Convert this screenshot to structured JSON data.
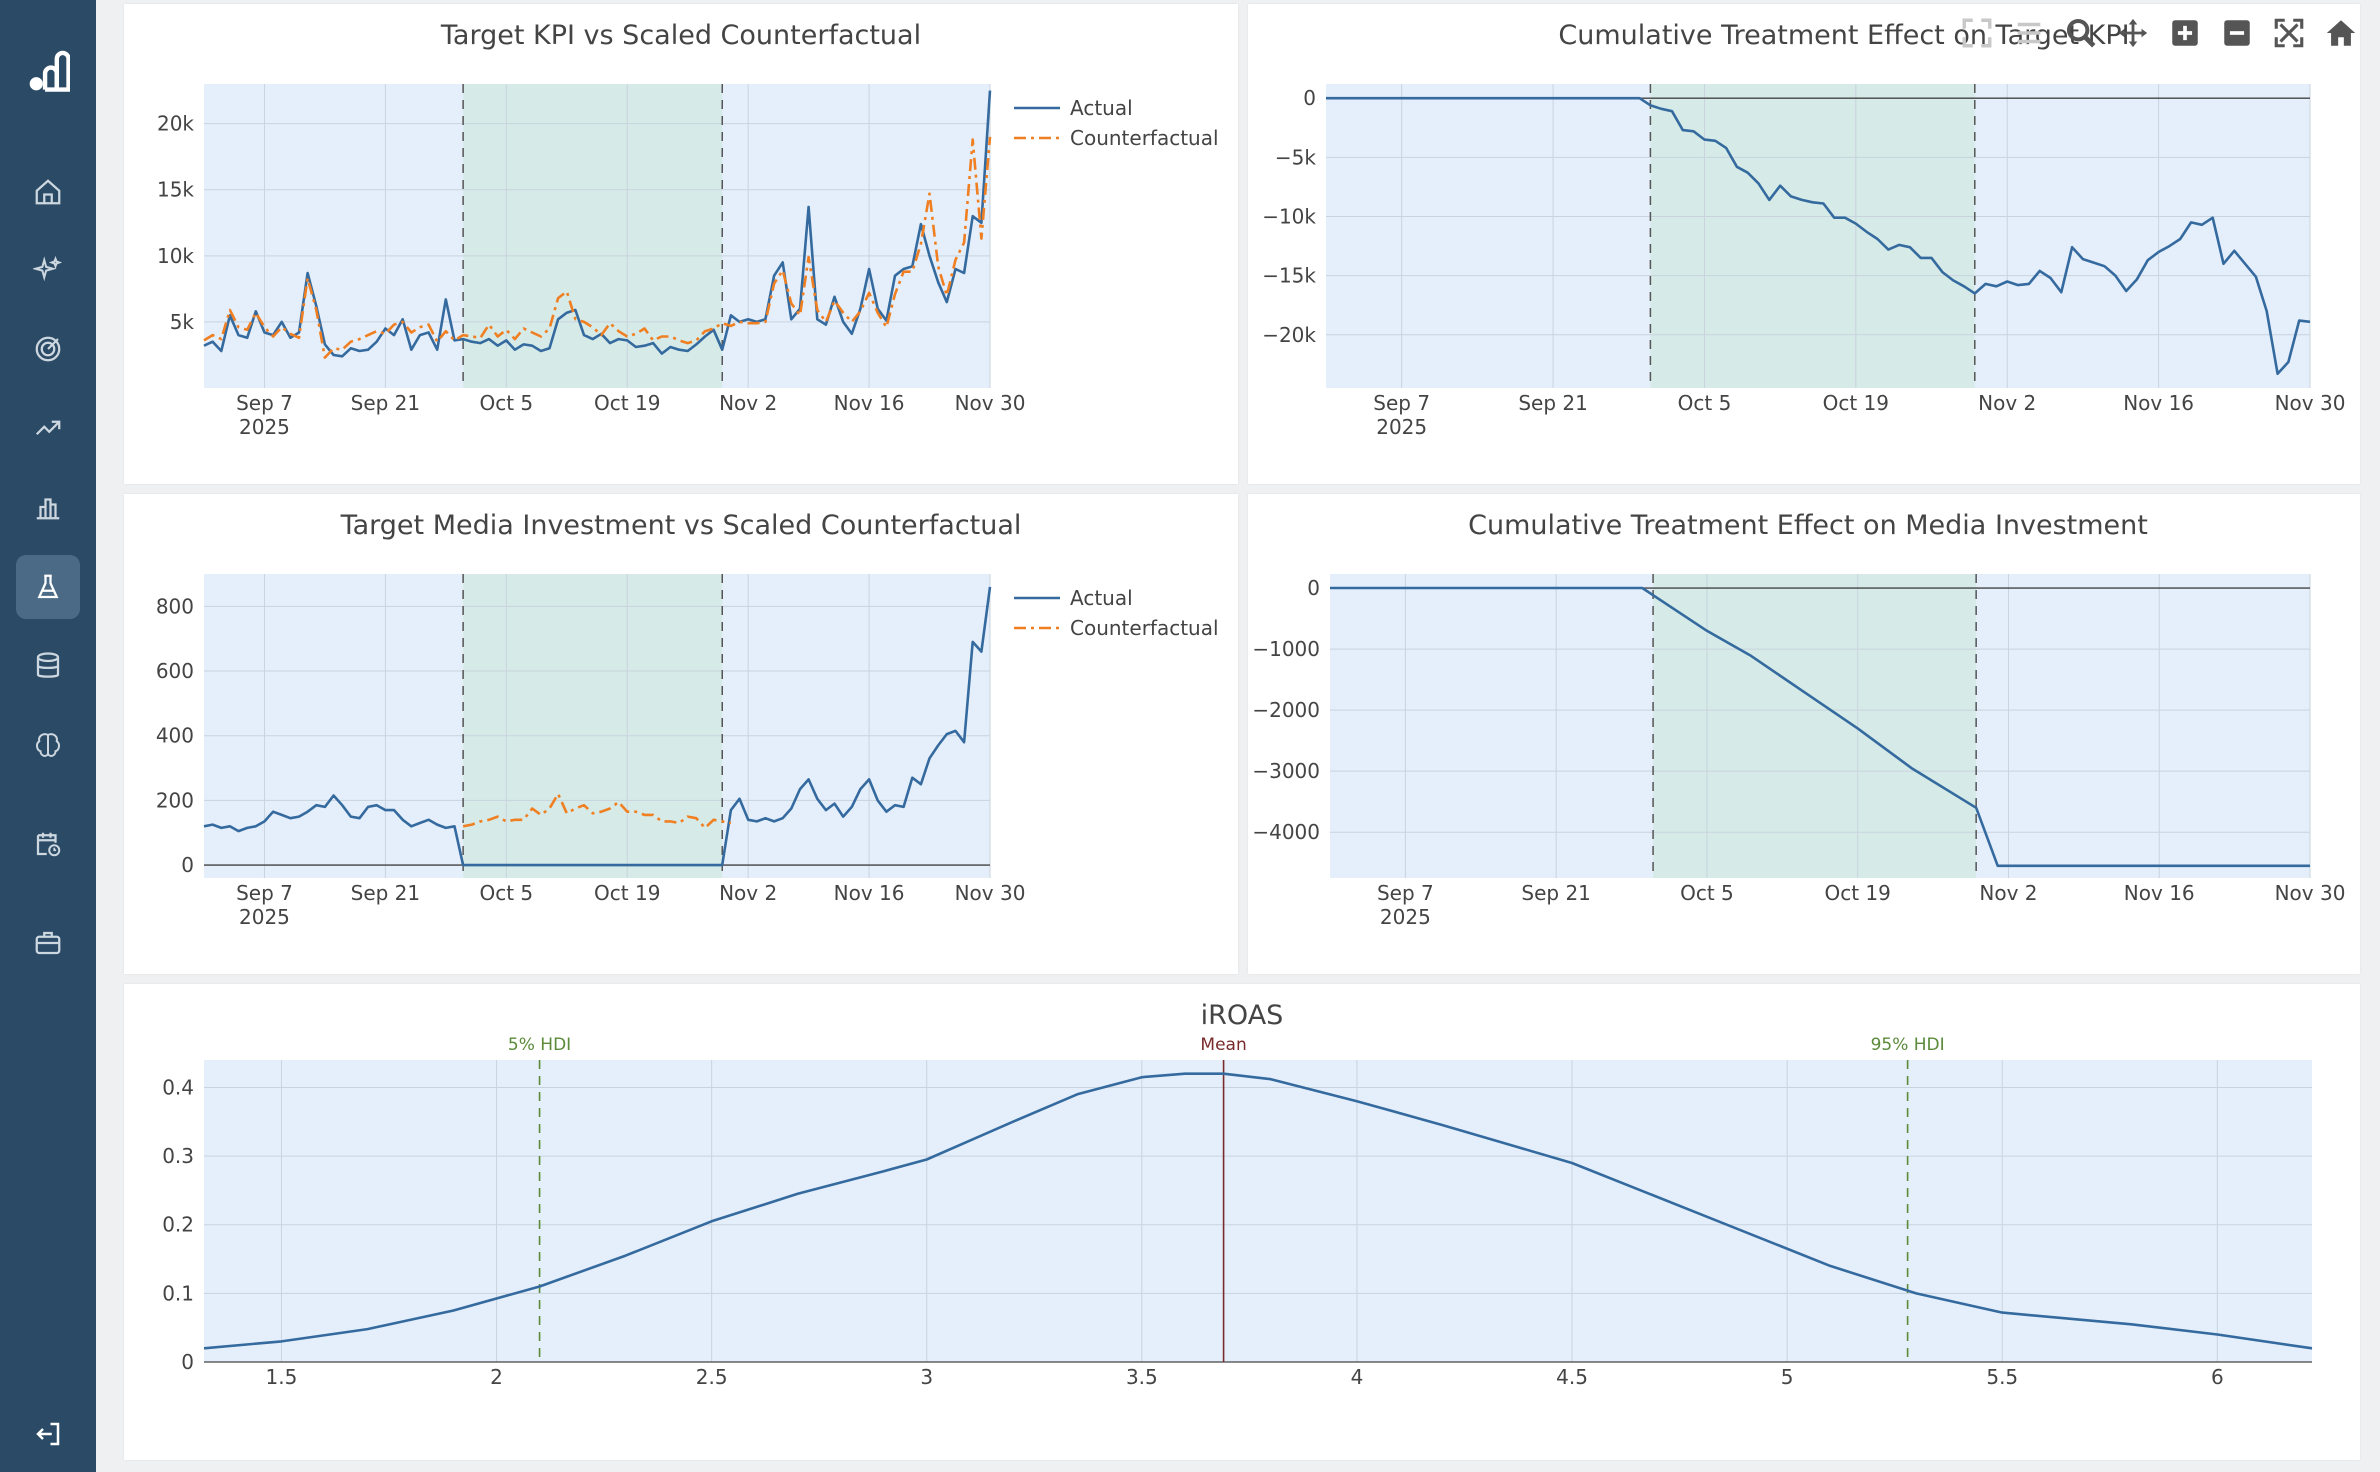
{
  "sidebar": {
    "items": [
      {
        "icon": "home-icon",
        "name": "nav-home"
      },
      {
        "icon": "sparkles-icon",
        "name": "nav-insights"
      },
      {
        "icon": "target-icon",
        "name": "nav-targets"
      },
      {
        "icon": "trend-icon",
        "name": "nav-trends"
      },
      {
        "icon": "bar-chart-icon",
        "name": "nav-charts"
      },
      {
        "icon": "flask-icon",
        "name": "nav-experiments",
        "active": true
      },
      {
        "icon": "database-icon",
        "name": "nav-data"
      },
      {
        "icon": "brain-icon",
        "name": "nav-models"
      },
      {
        "icon": "calendar-clock-icon",
        "name": "nav-schedule"
      },
      {
        "icon": "briefcase-icon",
        "name": "nav-projects"
      }
    ],
    "logout_icon": "logout-icon",
    "logo_icon": "logo-icon"
  },
  "modebar": [
    "fullscreen-icon",
    "menu-icon",
    "zoom-icon",
    "pan-icon",
    "zoom-in-icon",
    "zoom-out-icon",
    "autoscale-icon",
    "reset-axes-icon"
  ],
  "colors": {
    "actual": "#356a9f",
    "counterfactual": "#f07f22",
    "hdi": "#5a8a3a",
    "mean": "#7a2a2a",
    "plot_bg": "#e5effb",
    "shade": "#d6ebe8"
  },
  "chart_data": [
    {
      "id": "kpi",
      "type": "line",
      "title": "Target KPI vs Scaled Counterfactual",
      "x_start": "2025-08-31",
      "x_end": "2025-11-30",
      "xticks": [
        {
          "date": "2025-09-07",
          "label": "Sep 7",
          "sub": "2025"
        },
        {
          "date": "2025-09-21",
          "label": "Sep 21"
        },
        {
          "date": "2025-10-05",
          "label": "Oct 5"
        },
        {
          "date": "2025-10-19",
          "label": "Oct 19"
        },
        {
          "date": "2025-11-02",
          "label": "Nov 2"
        },
        {
          "date": "2025-11-16",
          "label": "Nov 16"
        },
        {
          "date": "2025-11-30",
          "label": "Nov 30"
        }
      ],
      "ylim": [
        0,
        23000
      ],
      "yticks": [
        {
          "v": 5000,
          "label": "5k"
        },
        {
          "v": 10000,
          "label": "10k"
        },
        {
          "v": 15000,
          "label": "15k"
        },
        {
          "v": 20000,
          "label": "20k"
        }
      ],
      "shade": [
        "2025-09-30",
        "2025-10-30"
      ],
      "legend": [
        "Actual",
        "Counterfactual"
      ],
      "series": [
        {
          "name": "Actual",
          "dates_start": "2025-08-31",
          "values": [
            3200,
            3500,
            2800,
            5500,
            4000,
            3800,
            5800,
            4200,
            4000,
            5000,
            3800,
            4200,
            8700,
            6200,
            3300,
            2500,
            2400,
            3000,
            2800,
            2900,
            3500,
            4500,
            4000,
            5200,
            2900,
            4000,
            4200,
            2900,
            6700,
            3600,
            3700,
            3500,
            3400,
            3700,
            3200,
            3600,
            2900,
            3300,
            3200,
            2800,
            3000,
            5200,
            5700,
            5900,
            4000,
            3700,
            4100,
            3400,
            3700,
            3600,
            3100,
            3200,
            3400,
            2600,
            3100,
            2900,
            2800,
            3300,
            3900,
            4400,
            2900,
            5500,
            5000,
            5200,
            5000,
            5200,
            8500,
            9500,
            5200,
            6000,
            13700,
            5200,
            4800,
            6900,
            5000,
            4100,
            6000,
            9000,
            6000,
            5100,
            8500,
            9000,
            9200,
            12400,
            10000,
            8000,
            6500,
            9000,
            8700,
            13000,
            12500,
            22500
          ],
          "dash": "solid"
        },
        {
          "name": "Counterfactual",
          "dates_start": "2025-08-31",
          "values": [
            3600,
            4000,
            3700,
            5900,
            4600,
            4400,
            5700,
            4600,
            3900,
            4600,
            4100,
            3800,
            8300,
            5900,
            2300,
            3000,
            2900,
            3500,
            3700,
            4000,
            4300,
            4100,
            4800,
            5000,
            4200,
            4600,
            4800,
            3500,
            4300,
            3600,
            4000,
            3900,
            3800,
            4800,
            3900,
            4400,
            3700,
            4500,
            4200,
            3900,
            4500,
            6800,
            7300,
            5200,
            5000,
            4600,
            4000,
            4900,
            4300,
            3900,
            4100,
            4500,
            3600,
            3900,
            3900,
            3600,
            3400,
            3600,
            4300,
            4500,
            4900,
            4700,
            5000,
            4900,
            4900,
            5000,
            7900,
            8900,
            6400,
            5500,
            9900,
            5900,
            5000,
            6600,
            5700,
            5000,
            5800,
            7200,
            5700,
            4600,
            7100,
            8800,
            8800,
            10900,
            14700,
            9200,
            7000,
            9700,
            11000,
            18800,
            11300,
            19000
          ],
          "dash": "dashdot"
        }
      ]
    },
    {
      "id": "kpi_cum",
      "type": "line",
      "title": "Cumulative Treatment Effect on Target KPI",
      "x_start": "2025-08-31",
      "x_end": "2025-11-30",
      "xticks": [
        {
          "date": "2025-09-07",
          "label": "Sep 7",
          "sub": "2025"
        },
        {
          "date": "2025-09-21",
          "label": "Sep 21"
        },
        {
          "date": "2025-10-05",
          "label": "Oct 5"
        },
        {
          "date": "2025-10-19",
          "label": "Oct 19"
        },
        {
          "date": "2025-11-02",
          "label": "Nov 2"
        },
        {
          "date": "2025-11-16",
          "label": "Nov 16"
        },
        {
          "date": "2025-11-30",
          "label": "Nov 30"
        }
      ],
      "ylim": [
        -24500,
        1200
      ],
      "yticks": [
        {
          "v": 0,
          "label": "0"
        },
        {
          "v": -5000,
          "label": "−5k"
        },
        {
          "v": -10000,
          "label": "−10k"
        },
        {
          "v": -15000,
          "label": "−15k"
        },
        {
          "v": -20000,
          "label": "−20k"
        }
      ],
      "zero_line": true,
      "shade": [
        "2025-09-30",
        "2025-10-30"
      ],
      "series": [
        {
          "name": "Actual",
          "dates_start": "2025-08-31",
          "values": [
            0,
            0,
            0,
            0,
            0,
            0,
            0,
            0,
            0,
            0,
            0,
            0,
            0,
            0,
            0,
            0,
            0,
            0,
            0,
            0,
            0,
            0,
            0,
            0,
            0,
            0,
            0,
            0,
            0,
            0,
            -600,
            -900,
            -1100,
            -2700,
            -2800,
            -3500,
            -3600,
            -4200,
            -5800,
            -6300,
            -7200,
            -8600,
            -7400,
            -8300,
            -8600,
            -8800,
            -8900,
            -10100,
            -10100,
            -10600,
            -11300,
            -11900,
            -12800,
            -12400,
            -12600,
            -13500,
            -13500,
            -14700,
            -15400,
            -15900,
            -16500,
            -15700,
            -15900,
            -15500,
            -15800,
            -15700,
            -14600,
            -15200,
            -16400,
            -12600,
            -13600,
            -13900,
            -14200,
            -15000,
            -16300,
            -15300,
            -13700,
            -13000,
            -12500,
            -11900,
            -10500,
            -10700,
            -10100,
            -14000,
            -12900,
            -14000,
            -15100,
            -18000,
            -23300,
            -22300,
            -18800,
            -18900
          ],
          "dash": "solid"
        }
      ]
    },
    {
      "id": "media",
      "type": "line",
      "title": "Target Media Investment vs Scaled Counterfactual",
      "x_start": "2025-08-31",
      "x_end": "2025-11-30",
      "xticks": [
        {
          "date": "2025-09-07",
          "label": "Sep 7",
          "sub": "2025"
        },
        {
          "date": "2025-09-21",
          "label": "Sep 21"
        },
        {
          "date": "2025-10-05",
          "label": "Oct 5"
        },
        {
          "date": "2025-10-19",
          "label": "Oct 19"
        },
        {
          "date": "2025-11-02",
          "label": "Nov 2"
        },
        {
          "date": "2025-11-16",
          "label": "Nov 16"
        },
        {
          "date": "2025-11-30",
          "label": "Nov 30"
        }
      ],
      "ylim": [
        -40,
        900
      ],
      "yticks": [
        {
          "v": 0,
          "label": "0"
        },
        {
          "v": 200,
          "label": "200"
        },
        {
          "v": 400,
          "label": "400"
        },
        {
          "v": 600,
          "label": "600"
        },
        {
          "v": 800,
          "label": "800"
        }
      ],
      "zero_line": true,
      "shade": [
        "2025-09-30",
        "2025-10-30"
      ],
      "legend": [
        "Actual",
        "Counterfactual"
      ],
      "series": [
        {
          "name": "Actual",
          "dates_start": "2025-08-31",
          "values": [
            120,
            125,
            115,
            120,
            105,
            115,
            120,
            135,
            165,
            155,
            145,
            150,
            165,
            185,
            180,
            215,
            185,
            150,
            145,
            180,
            185,
            170,
            170,
            140,
            120,
            130,
            140,
            125,
            115,
            120,
            0,
            0,
            0,
            0,
            0,
            0,
            0,
            0,
            0,
            0,
            0,
            0,
            0,
            0,
            0,
            0,
            0,
            0,
            0,
            0,
            0,
            0,
            0,
            0,
            0,
            0,
            0,
            0,
            0,
            0,
            0,
            170,
            205,
            140,
            135,
            145,
            135,
            145,
            175,
            235,
            265,
            205,
            170,
            190,
            150,
            180,
            235,
            265,
            200,
            165,
            185,
            180,
            270,
            250,
            330,
            370,
            405,
            415,
            380,
            690,
            660,
            860
          ],
          "dash": "solid"
        },
        {
          "name": "Counterfactual",
          "dates_start": "2025-09-30",
          "values": [
            120,
            125,
            135,
            140,
            150,
            135,
            140,
            140,
            175,
            155,
            175,
            220,
            160,
            175,
            185,
            160,
            165,
            175,
            195,
            165,
            165,
            155,
            155,
            135,
            135,
            130,
            150,
            145,
            115,
            140,
            135,
            130
          ],
          "dash": "dashdot"
        }
      ]
    },
    {
      "id": "media_cum",
      "type": "line",
      "title": "Cumulative Treatment Effect on Media Investment",
      "x_start": "2025-08-31",
      "x_end": "2025-11-30",
      "xticks": [
        {
          "date": "2025-09-07",
          "label": "Sep 7",
          "sub": "2025"
        },
        {
          "date": "2025-09-21",
          "label": "Sep 21"
        },
        {
          "date": "2025-10-05",
          "label": "Oct 5"
        },
        {
          "date": "2025-10-19",
          "label": "Oct 19"
        },
        {
          "date": "2025-11-02",
          "label": "Nov 2"
        },
        {
          "date": "2025-11-16",
          "label": "Nov 16"
        },
        {
          "date": "2025-11-30",
          "label": "Nov 30"
        }
      ],
      "ylim": [
        -4750,
        230
      ],
      "yticks": [
        {
          "v": 0,
          "label": "0"
        },
        {
          "v": -1000,
          "label": "−1000"
        },
        {
          "v": -2000,
          "label": "−2000"
        },
        {
          "v": -3000,
          "label": "−3000"
        },
        {
          "v": -4000,
          "label": "−4000"
        }
      ],
      "zero_line": true,
      "shade": [
        "2025-09-30",
        "2025-10-30"
      ],
      "series": [
        {
          "name": "Actual",
          "points": [
            [
              "2025-08-31",
              0
            ],
            [
              "2025-09-29",
              0
            ],
            [
              "2025-10-05",
              -700
            ],
            [
              "2025-10-09",
              -1100
            ],
            [
              "2025-10-14",
              -1700
            ],
            [
              "2025-10-19",
              -2300
            ],
            [
              "2025-10-24",
              -2950
            ],
            [
              "2025-10-30",
              -3600
            ],
            [
              "2025-11-01",
              -4550
            ],
            [
              "2025-11-30",
              -4550
            ]
          ],
          "dash": "solid"
        }
      ]
    },
    {
      "id": "iroas",
      "type": "line",
      "title": "iROAS",
      "xlim": [
        1.32,
        6.22
      ],
      "ylim": [
        0,
        0.44
      ],
      "xticks": [
        {
          "v": 1.5,
          "label": "1.5"
        },
        {
          "v": 2,
          "label": "2"
        },
        {
          "v": 2.5,
          "label": "2.5"
        },
        {
          "v": 3,
          "label": "3"
        },
        {
          "v": 3.5,
          "label": "3.5"
        },
        {
          "v": 4,
          "label": "4"
        },
        {
          "v": 4.5,
          "label": "4.5"
        },
        {
          "v": 5,
          "label": "5"
        },
        {
          "v": 5.5,
          "label": "5.5"
        },
        {
          "v": 6,
          "label": "6"
        }
      ],
      "yticks": [
        {
          "v": 0,
          "label": "0"
        },
        {
          "v": 0.1,
          "label": "0.1"
        },
        {
          "v": 0.2,
          "label": "0.2"
        },
        {
          "v": 0.3,
          "label": "0.3"
        },
        {
          "v": 0.4,
          "label": "0.4"
        }
      ],
      "vlines": [
        {
          "x": 2.1,
          "label": "5% HDI",
          "color": "#5a8a3a",
          "dash": true
        },
        {
          "x": 3.69,
          "label": "Mean",
          "color": "#7a2a2a",
          "dash": false
        },
        {
          "x": 5.28,
          "label": "95% HDI",
          "color": "#5a8a3a",
          "dash": true
        }
      ],
      "series": [
        {
          "name": "density",
          "points": [
            [
              1.32,
              0.02
            ],
            [
              1.5,
              0.03
            ],
            [
              1.7,
              0.048
            ],
            [
              1.9,
              0.075
            ],
            [
              2.1,
              0.11
            ],
            [
              2.3,
              0.155
            ],
            [
              2.5,
              0.205
            ],
            [
              2.7,
              0.245
            ],
            [
              2.9,
              0.278
            ],
            [
              3.0,
              0.295
            ],
            [
              3.2,
              0.35
            ],
            [
              3.35,
              0.39
            ],
            [
              3.5,
              0.415
            ],
            [
              3.6,
              0.42
            ],
            [
              3.69,
              0.42
            ],
            [
              3.8,
              0.412
            ],
            [
              4.0,
              0.38
            ],
            [
              4.2,
              0.345
            ],
            [
              4.5,
              0.29
            ],
            [
              4.8,
              0.215
            ],
            [
              5.1,
              0.14
            ],
            [
              5.3,
              0.1
            ],
            [
              5.5,
              0.072
            ],
            [
              5.8,
              0.055
            ],
            [
              6.0,
              0.04
            ],
            [
              6.22,
              0.02
            ]
          ],
          "dash": "solid"
        }
      ]
    }
  ]
}
